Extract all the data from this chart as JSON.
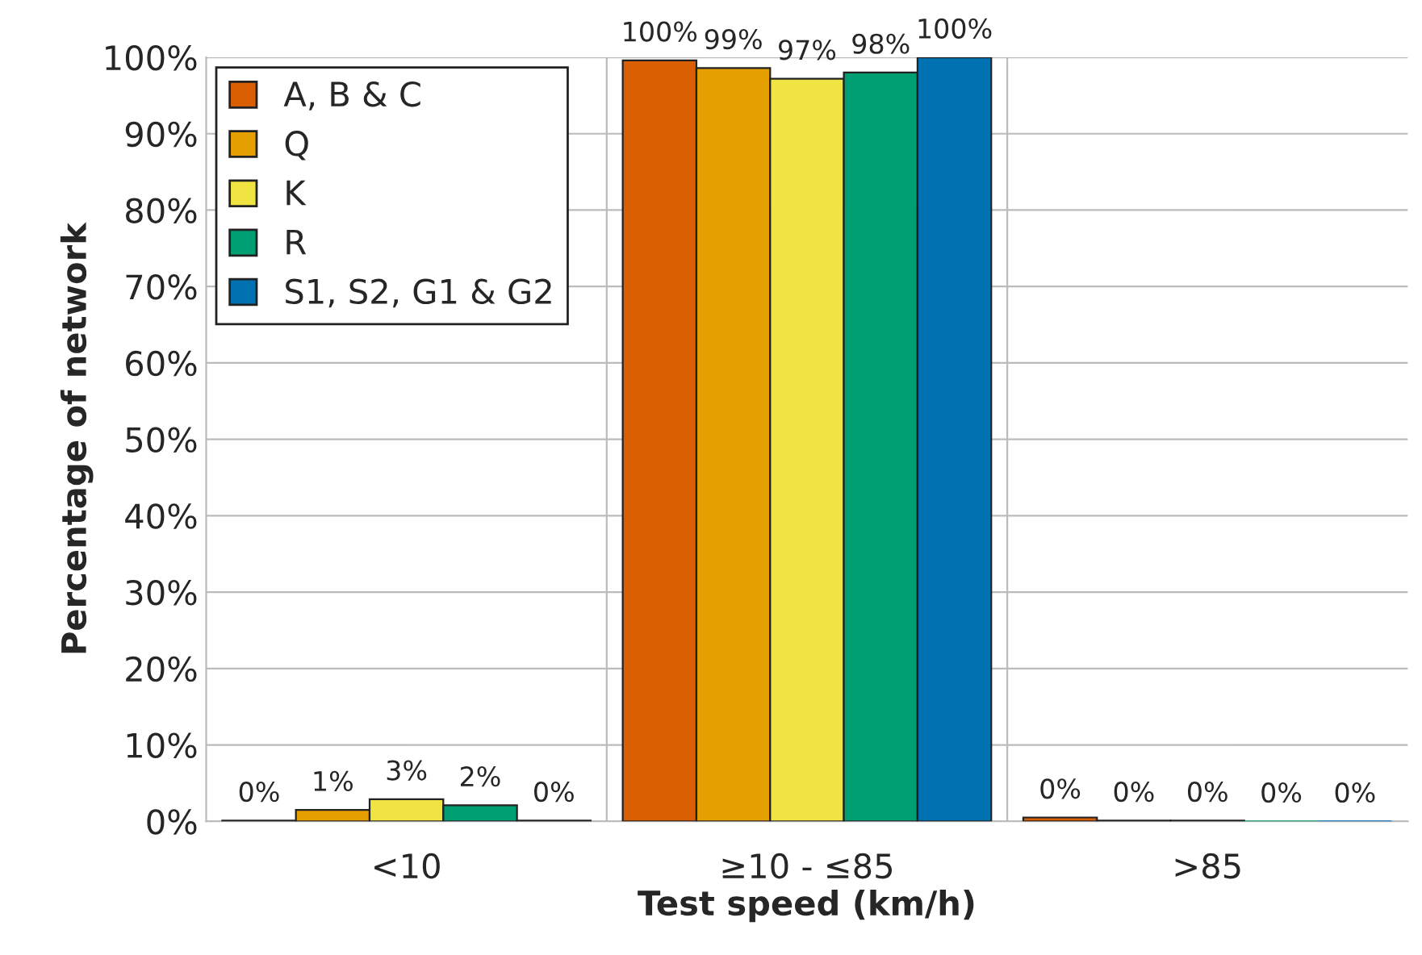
{
  "chart_data": {
    "type": "bar",
    "xlabel": "Test speed (km/h)",
    "ylabel": "Percentage of network",
    "categories": [
      "<10",
      "≥10 - ≤85",
      ">85"
    ],
    "series": [
      {
        "name": "A, B & C",
        "color": "#d95f02",
        "values": [
          0.1,
          99.6,
          0.5
        ],
        "value_labels": [
          "0%",
          "100%",
          "0%"
        ]
      },
      {
        "name": "Q",
        "color": "#e69f00",
        "values": [
          1.5,
          98.6,
          0.1
        ],
        "value_labels": [
          "1%",
          "99%",
          "0%"
        ]
      },
      {
        "name": "K",
        "color": "#f0e442",
        "values": [
          2.9,
          97.2,
          0.1
        ],
        "value_labels": [
          "3%",
          "97%",
          "0%"
        ]
      },
      {
        "name": "R",
        "color": "#009e73",
        "values": [
          2.1,
          98.0,
          0
        ],
        "value_labels": [
          "2%",
          "98%",
          "0%"
        ]
      },
      {
        "name": "S1, S2, G1 & G2",
        "color": "#0072b2",
        "values": [
          0.1,
          100,
          0
        ],
        "value_labels": [
          "0%",
          "100%",
          "0%"
        ]
      }
    ],
    "ylim": [
      0,
      100
    ],
    "yticks": [
      {
        "value": 0,
        "label": "0%"
      },
      {
        "value": 10,
        "label": "10%"
      },
      {
        "value": 20,
        "label": "20%"
      },
      {
        "value": 30,
        "label": "30%"
      },
      {
        "value": 40,
        "label": "40%"
      },
      {
        "value": 50,
        "label": "50%"
      },
      {
        "value": 60,
        "label": "60%"
      },
      {
        "value": 70,
        "label": "70%"
      },
      {
        "value": 80,
        "label": "80%"
      },
      {
        "value": 90,
        "label": "90%"
      },
      {
        "value": 100,
        "label": "100%"
      }
    ],
    "grid": true,
    "legend": "top left"
  }
}
